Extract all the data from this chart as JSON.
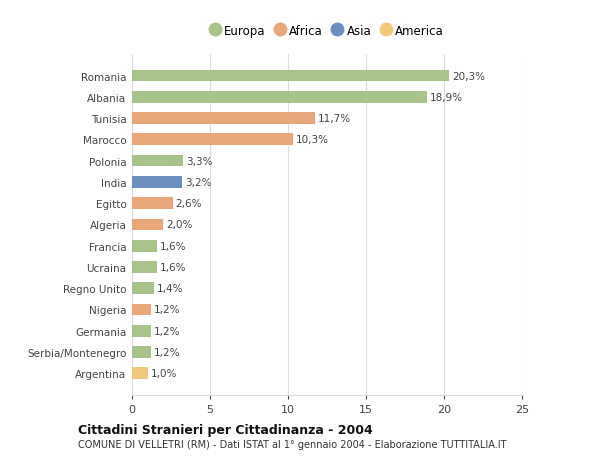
{
  "categories": [
    "Argentina",
    "Serbia/Montenegro",
    "Germania",
    "Nigeria",
    "Regno Unito",
    "Ucraina",
    "Francia",
    "Algeria",
    "Egitto",
    "India",
    "Polonia",
    "Marocco",
    "Tunisia",
    "Albania",
    "Romania"
  ],
  "values": [
    1.0,
    1.2,
    1.2,
    1.2,
    1.4,
    1.6,
    1.6,
    2.0,
    2.6,
    3.2,
    3.3,
    10.3,
    11.7,
    18.9,
    20.3
  ],
  "labels": [
    "1,0%",
    "1,2%",
    "1,2%",
    "1,2%",
    "1,4%",
    "1,6%",
    "1,6%",
    "2,0%",
    "2,6%",
    "3,2%",
    "3,3%",
    "10,3%",
    "11,7%",
    "18,9%",
    "20,3%"
  ],
  "colors": [
    "#f0c97a",
    "#a8c48a",
    "#a8c48a",
    "#e8a87c",
    "#a8c48a",
    "#a8c48a",
    "#a8c48a",
    "#e8a87c",
    "#e8a87c",
    "#6b8ebf",
    "#a8c48a",
    "#e8a87c",
    "#e8a87c",
    "#a8c48a",
    "#a8c48a"
  ],
  "continent_colors": {
    "Europa": "#a8c48a",
    "Africa": "#e8a87c",
    "Asia": "#6b8ebf",
    "America": "#f0c97a"
  },
  "title_bold": "Cittadini Stranieri per Cittadinanza - 2004",
  "title_sub": "COMUNE DI VELLETRI (RM) - Dati ISTAT al 1° gennaio 2004 - Elaborazione TUTTITALIA.IT",
  "xlim": [
    0,
    25
  ],
  "xticks": [
    0,
    5,
    10,
    15,
    20,
    25
  ],
  "background_color": "#ffffff",
  "grid_color": "#dddddd",
  "bar_height": 0.55,
  "legend_items": [
    "Europa",
    "Africa",
    "Asia",
    "America"
  ]
}
